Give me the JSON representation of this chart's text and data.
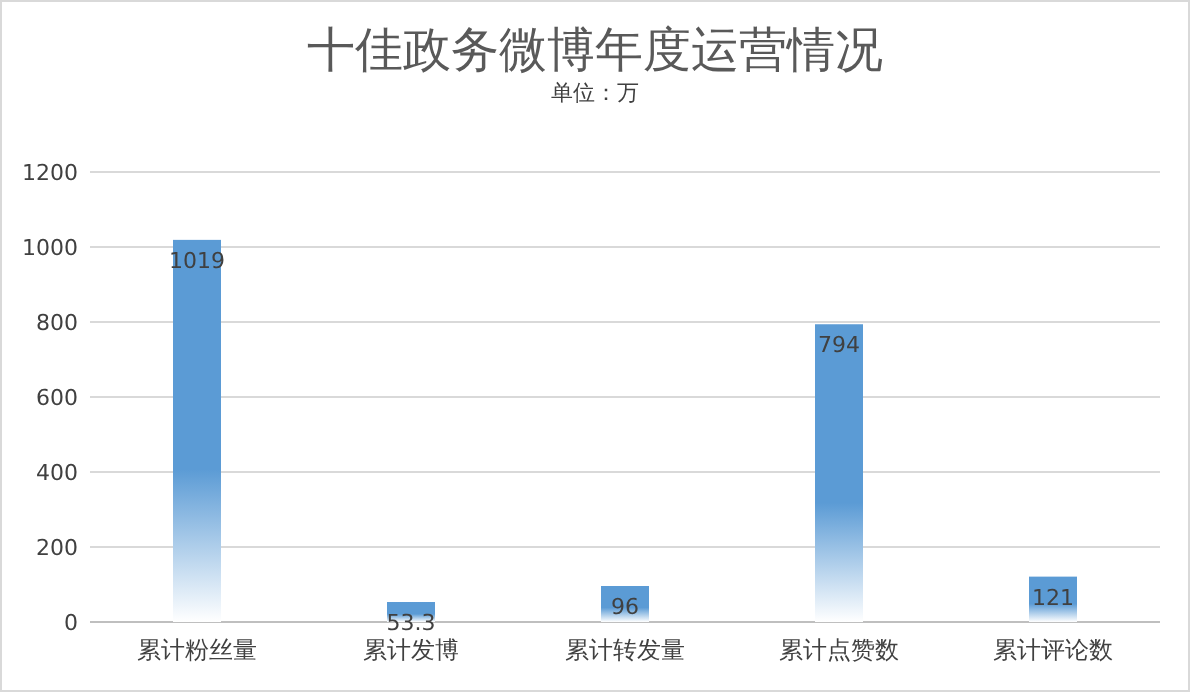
{
  "chart_data": {
    "type": "bar",
    "title": "十佳政务微博年度运营情况",
    "subtitle": "单位：万",
    "categories": [
      "累计粉丝量",
      "累计发博",
      "累计转发量",
      "累计点赞数",
      "累计评论数"
    ],
    "values": [
      1019,
      53.3,
      96,
      794,
      121
    ],
    "color": "#5b9bd5",
    "ylim": [
      0,
      1200
    ],
    "yticks": [
      0,
      200,
      400,
      600,
      800,
      1000,
      1200
    ],
    "grid": "y",
    "data_labels": true
  }
}
